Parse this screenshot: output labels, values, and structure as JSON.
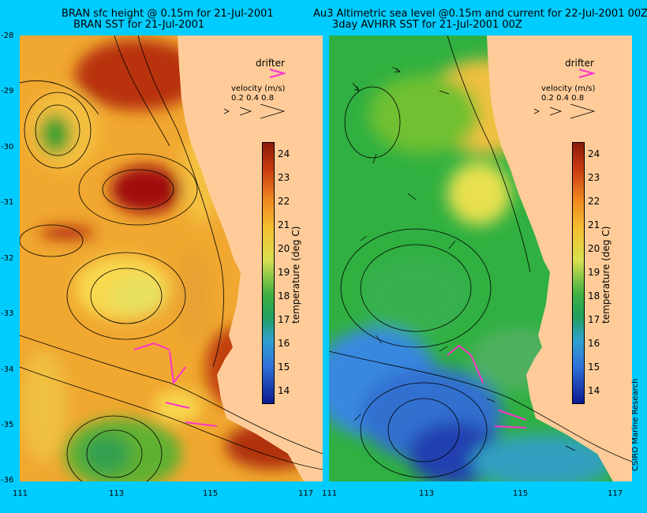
{
  "left": {
    "title_line1": "BRAN sfc height @ 0.15m for 21-Jul-2001",
    "title_line2": "BRAN SST for 21-Jul-2001"
  },
  "right": {
    "title_line1": "Au3 Altimetric sea level  @0.15m and current for 22-Jul-2001 00Z",
    "title_line2": "3day AVHRR SST for 21-Jul-2001 00Z"
  },
  "legend": {
    "drifter_label": "drifter",
    "velocity_label": "velocity (m/s)",
    "velocity_values": "0.2 0.4 0.8"
  },
  "colorbar": {
    "title": "temperature (deg C)",
    "ticks": [
      "24",
      "23",
      "22",
      "21",
      "20",
      "19",
      "18",
      "17",
      "16",
      "15",
      "14"
    ],
    "min": 13.5,
    "max": 24.5
  },
  "axes": {
    "lat_ticks": [
      "-28",
      "-29",
      "-30",
      "-31",
      "-32",
      "-33",
      "-34",
      "-35",
      "-36"
    ],
    "lon_ticks": [
      "111",
      "113",
      "115",
      "117"
    ]
  },
  "credit": "CSIRO Marine Research",
  "colors": {
    "background": "#00ccff",
    "land": "#ffcc99",
    "drifter": "#ff33cc"
  }
}
